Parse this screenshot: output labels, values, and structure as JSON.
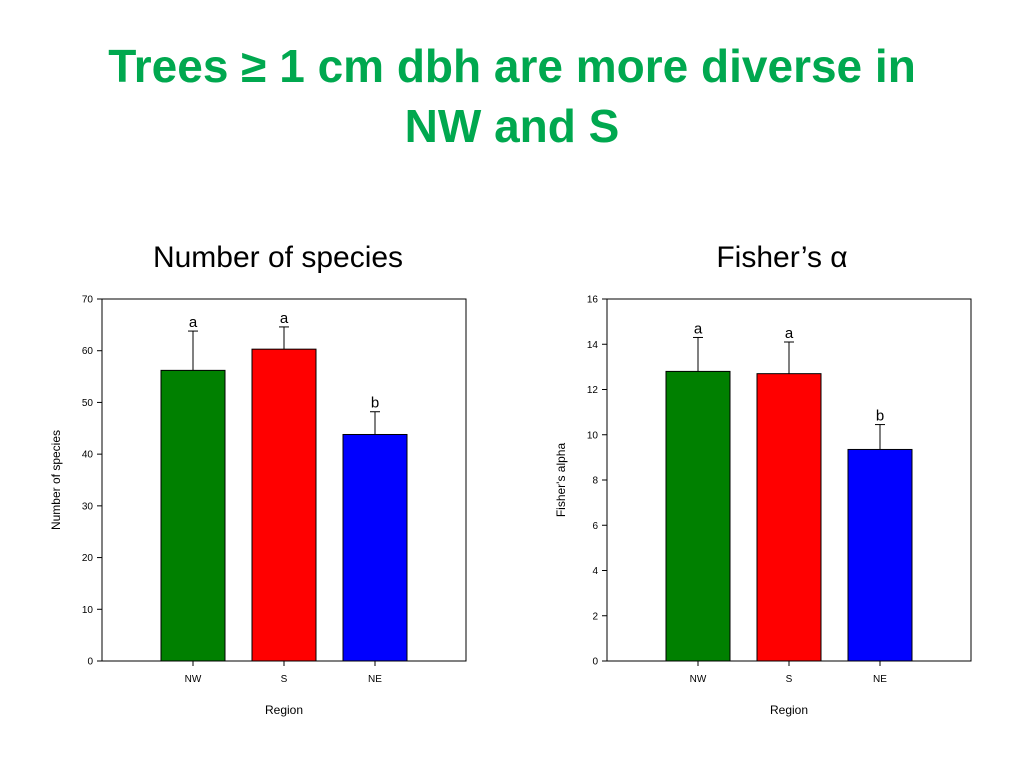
{
  "slide": {
    "title_line1": "Trees ≥ 1 cm dbh are more diverse in",
    "title_line2": "NW and S",
    "title_color": "#00a84f"
  },
  "panels": {
    "left_heading": "Number of species",
    "right_heading": "Fisher’s α"
  },
  "chart_data": [
    {
      "type": "bar",
      "categories": [
        "NW",
        "S",
        "NE"
      ],
      "values": [
        56.2,
        60.3,
        43.8
      ],
      "error_upper": [
        63.8,
        64.6,
        48.2
      ],
      "letters": [
        "a",
        "a",
        "b"
      ],
      "colors": [
        "#008000",
        "#ff0000",
        "#0000ff"
      ],
      "xlabel": "Region",
      "ylabel": "Number of species",
      "ylim": [
        0,
        70
      ],
      "yticks": [
        0,
        10,
        20,
        30,
        40,
        50,
        60,
        70
      ]
    },
    {
      "type": "bar",
      "categories": [
        "NW",
        "S",
        "NE"
      ],
      "values": [
        12.8,
        12.7,
        9.35
      ],
      "error_upper": [
        14.3,
        14.1,
        10.45
      ],
      "letters": [
        "a",
        "a",
        "b"
      ],
      "colors": [
        "#008000",
        "#ff0000",
        "#0000ff"
      ],
      "xlabel": "Region",
      "ylabel": "Fisher's alpha",
      "ylim": [
        0,
        16
      ],
      "yticks": [
        0,
        2,
        4,
        6,
        8,
        10,
        12,
        14,
        16
      ]
    }
  ]
}
